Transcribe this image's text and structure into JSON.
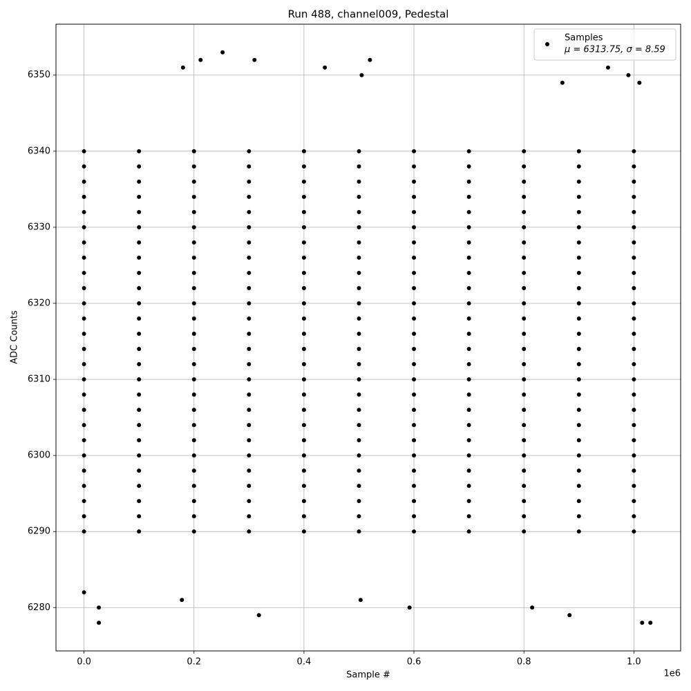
{
  "chart_data": {
    "type": "scatter",
    "title": "Run 488, channel009, Pedestal",
    "x_label": "Sample #",
    "y_label": "ADC Counts",
    "x_offset_label": "1e6",
    "xlim": [
      -51000,
      1085000
    ],
    "ylim": [
      6274.3,
      6356.7
    ],
    "xticks": [
      {
        "value": 0,
        "label": "0.0"
      },
      {
        "value": 200000,
        "label": "0.2"
      },
      {
        "value": 400000,
        "label": "0.4"
      },
      {
        "value": 600000,
        "label": "0.6"
      },
      {
        "value": 800000,
        "label": "0.8"
      },
      {
        "value": 1000000,
        "label": "1.0"
      }
    ],
    "yticks": [
      6280,
      6290,
      6300,
      6310,
      6320,
      6330,
      6340,
      6350
    ],
    "grid": true,
    "legend_position": "upper right",
    "legend_note": "μ = 6313.75, σ = 8.59",
    "series": [
      {
        "name": "Samples",
        "color": "#000000",
        "x": [
          0,
          100000,
          200000,
          300000,
          400000,
          500000,
          600000,
          700000,
          800000,
          900000,
          1000000,
          0,
          100000,
          200000,
          300000,
          400000,
          500000,
          600000,
          700000,
          800000,
          900000,
          1000000,
          0,
          100000,
          200000,
          300000,
          400000,
          500000,
          600000,
          700000,
          800000,
          900000,
          1000000,
          0,
          100000,
          200000,
          300000,
          400000,
          500000,
          600000,
          700000,
          800000,
          900000,
          1000000,
          0,
          100000,
          200000,
          300000,
          400000,
          500000,
          600000,
          700000,
          800000,
          900000,
          1000000,
          0,
          100000,
          200000,
          300000,
          400000,
          500000,
          600000,
          700000,
          800000,
          900000,
          1000000,
          0,
          100000,
          200000,
          300000,
          400000,
          500000,
          600000,
          700000,
          800000,
          900000,
          1000000,
          0,
          100000,
          200000,
          300000,
          400000,
          500000,
          600000,
          700000,
          800000,
          900000,
          1000000,
          0,
          100000,
          200000,
          300000,
          400000,
          500000,
          600000,
          700000,
          800000,
          900000,
          1000000,
          0,
          100000,
          200000,
          300000,
          400000,
          500000,
          600000,
          700000,
          800000,
          900000,
          1000000,
          0,
          100000,
          200000,
          300000,
          400000,
          500000,
          600000,
          700000,
          800000,
          900000,
          1000000,
          0,
          100000,
          200000,
          300000,
          400000,
          500000,
          600000,
          700000,
          800000,
          900000,
          1000000,
          0,
          100000,
          200000,
          300000,
          400000,
          500000,
          600000,
          700000,
          800000,
          900000,
          1000000,
          0,
          100000,
          200000,
          300000,
          400000,
          500000,
          600000,
          700000,
          800000,
          900000,
          1000000,
          0,
          100000,
          200000,
          300000,
          400000,
          500000,
          600000,
          700000,
          800000,
          900000,
          1000000,
          0,
          100000,
          200000,
          300000,
          400000,
          500000,
          600000,
          700000,
          800000,
          900000,
          1000000,
          0,
          100000,
          200000,
          300000,
          400000,
          500000,
          600000,
          700000,
          800000,
          900000,
          1000000,
          0,
          100000,
          200000,
          300000,
          400000,
          500000,
          600000,
          700000,
          800000,
          900000,
          1000000,
          0,
          100000,
          200000,
          300000,
          400000,
          500000,
          600000,
          700000,
          800000,
          900000,
          1000000,
          0,
          100000,
          200000,
          300000,
          400000,
          500000,
          600000,
          700000,
          800000,
          900000,
          1000000,
          0,
          100000,
          200000,
          300000,
          400000,
          500000,
          600000,
          700000,
          800000,
          900000,
          1000000,
          0,
          100000,
          200000,
          300000,
          400000,
          500000,
          600000,
          700000,
          800000,
          900000,
          1000000,
          0,
          100000,
          200000,
          300000,
          400000,
          500000,
          600000,
          700000,
          800000,
          900000,
          1000000,
          0,
          100000,
          200000,
          300000,
          400000,
          500000,
          600000,
          700000,
          800000,
          900000,
          1000000,
          0,
          100000,
          200000,
          300000,
          400000,
          500000,
          600000,
          700000,
          800000,
          900000,
          1000000,
          0,
          100000,
          200000,
          300000,
          400000,
          500000,
          600000,
          700000,
          800000,
          900000,
          1000000,
          0,
          27000,
          27000,
          212000,
          252000,
          318000,
          438000,
          520000,
          592000,
          883000,
          953000,
          990000,
          1015000,
          1030000,
          815000,
          180000,
          310000,
          505000,
          178000,
          503000,
          870000,
          1010000
        ],
        "values": [
          6290,
          6290,
          6290,
          6290,
          6290,
          6290,
          6290,
          6290,
          6290,
          6290,
          6290,
          6292,
          6292,
          6292,
          6292,
          6292,
          6292,
          6292,
          6292,
          6292,
          6292,
          6292,
          6294,
          6294,
          6294,
          6294,
          6294,
          6294,
          6294,
          6294,
          6294,
          6294,
          6294,
          6296,
          6296,
          6296,
          6296,
          6296,
          6296,
          6296,
          6296,
          6296,
          6296,
          6296,
          6298,
          6298,
          6298,
          6298,
          6298,
          6298,
          6298,
          6298,
          6298,
          6298,
          6298,
          6300,
          6300,
          6300,
          6300,
          6300,
          6300,
          6300,
          6300,
          6300,
          6300,
          6300,
          6302,
          6302,
          6302,
          6302,
          6302,
          6302,
          6302,
          6302,
          6302,
          6302,
          6302,
          6304,
          6304,
          6304,
          6304,
          6304,
          6304,
          6304,
          6304,
          6304,
          6304,
          6304,
          6306,
          6306,
          6306,
          6306,
          6306,
          6306,
          6306,
          6306,
          6306,
          6306,
          6306,
          6308,
          6308,
          6308,
          6308,
          6308,
          6308,
          6308,
          6308,
          6308,
          6308,
          6308,
          6310,
          6310,
          6310,
          6310,
          6310,
          6310,
          6310,
          6310,
          6310,
          6310,
          6310,
          6312,
          6312,
          6312,
          6312,
          6312,
          6312,
          6312,
          6312,
          6312,
          6312,
          6312,
          6314,
          6314,
          6314,
          6314,
          6314,
          6314,
          6314,
          6314,
          6314,
          6314,
          6314,
          6316,
          6316,
          6316,
          6316,
          6316,
          6316,
          6316,
          6316,
          6316,
          6316,
          6316,
          6318,
          6318,
          6318,
          6318,
          6318,
          6318,
          6318,
          6318,
          6318,
          6318,
          6318,
          6320,
          6320,
          6320,
          6320,
          6320,
          6320,
          6320,
          6320,
          6320,
          6320,
          6320,
          6322,
          6322,
          6322,
          6322,
          6322,
          6322,
          6322,
          6322,
          6322,
          6322,
          6322,
          6324,
          6324,
          6324,
          6324,
          6324,
          6324,
          6324,
          6324,
          6324,
          6324,
          6324,
          6326,
          6326,
          6326,
          6326,
          6326,
          6326,
          6326,
          6326,
          6326,
          6326,
          6326,
          6328,
          6328,
          6328,
          6328,
          6328,
          6328,
          6328,
          6328,
          6328,
          6328,
          6328,
          6330,
          6330,
          6330,
          6330,
          6330,
          6330,
          6330,
          6330,
          6330,
          6330,
          6330,
          6332,
          6332,
          6332,
          6332,
          6332,
          6332,
          6332,
          6332,
          6332,
          6332,
          6332,
          6334,
          6334,
          6334,
          6334,
          6334,
          6334,
          6334,
          6334,
          6334,
          6334,
          6334,
          6336,
          6336,
          6336,
          6336,
          6336,
          6336,
          6336,
          6336,
          6336,
          6336,
          6336,
          6338,
          6338,
          6338,
          6338,
          6338,
          6338,
          6338,
          6338,
          6338,
          6338,
          6338,
          6340,
          6340,
          6340,
          6340,
          6340,
          6340,
          6340,
          6340,
          6340,
          6340,
          6340,
          6282,
          6278,
          6280,
          6352,
          6353,
          6279,
          6351,
          6352,
          6280,
          6279,
          6351,
          6350,
          6278,
          6278,
          6280,
          6351,
          6352,
          6350,
          6281,
          6281,
          6349,
          6349
        ]
      }
    ]
  }
}
